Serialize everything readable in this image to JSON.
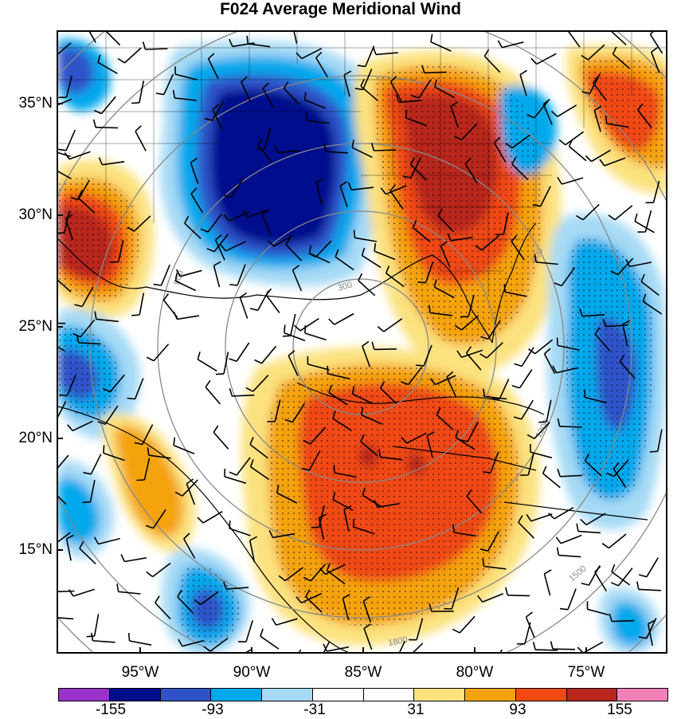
{
  "title": "F024 Average Meridional Wind",
  "lat_labels": [
    {
      "text": "35°N",
      "lat": 35
    },
    {
      "text": "30°N",
      "lat": 30
    },
    {
      "text": "25°N",
      "lat": 25
    },
    {
      "text": "20°N",
      "lat": 20
    },
    {
      "text": "15°N",
      "lat": 15
    }
  ],
  "lon_labels": [
    {
      "text": "95°W",
      "lon": -95
    },
    {
      "text": "90°W",
      "lon": -90
    },
    {
      "text": "85°W",
      "lon": -85
    },
    {
      "text": "80°W",
      "lon": -80
    },
    {
      "text": "75°W",
      "lon": -75
    }
  ],
  "colorbar": {
    "colors": [
      "#9933cc",
      "#000e8c",
      "#2f52c9",
      "#00a8ec",
      "#a6daf5",
      "#ffffff",
      "#ffffff",
      "#fbe27f",
      "#f4a310",
      "#f04a12",
      "#b8261e",
      "#f080b8"
    ],
    "labels": [
      "-155",
      "-93",
      "-31",
      "31",
      "93",
      "155"
    ]
  },
  "range_ring_labels": [
    "300",
    "600",
    "900",
    "1200",
    "1500",
    "1800"
  ],
  "chart_data": {
    "type": "map",
    "field": "meridional wind (shaded)",
    "contour_levels": [
      -155,
      -124,
      -93,
      -62,
      -31,
      0,
      31,
      62,
      93,
      124,
      155
    ],
    "xlim": [
      -98.3,
      -71.6
    ],
    "ylim": [
      10.2,
      38.2
    ]
  }
}
